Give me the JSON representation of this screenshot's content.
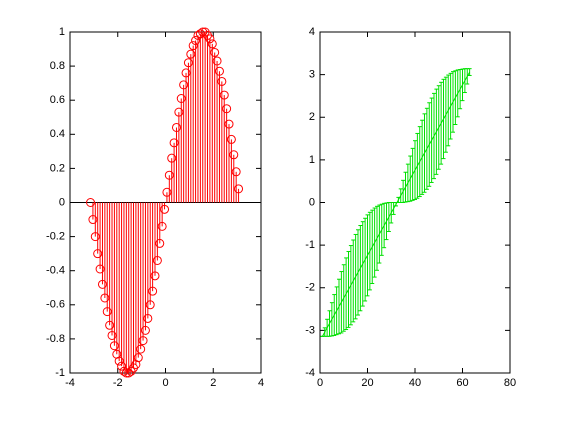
{
  "chart_data": [
    {
      "type": "stem",
      "color": "#ff0000",
      "x": [
        -3.14,
        -3.04,
        -2.94,
        -2.84,
        -2.74,
        -2.64,
        -2.54,
        -2.44,
        -2.34,
        -2.24,
        -2.14,
        -2.04,
        -1.94,
        -1.84,
        -1.74,
        -1.64,
        -1.54,
        -1.44,
        -1.34,
        -1.24,
        -1.14,
        -1.04,
        -0.94,
        -0.84,
        -0.74,
        -0.64,
        -0.54,
        -0.44,
        -0.34,
        -0.24,
        -0.14,
        -0.04,
        0.06,
        0.16,
        0.26,
        0.36,
        0.46,
        0.56,
        0.66,
        0.76,
        0.86,
        0.96,
        1.06,
        1.16,
        1.26,
        1.36,
        1.46,
        1.56,
        1.66,
        1.76,
        1.86,
        1.96,
        2.06,
        2.16,
        2.26,
        2.36,
        2.46,
        2.56,
        2.66,
        2.76,
        2.86,
        2.96,
        3.06
      ],
      "values": [
        0,
        -0.1,
        -0.2,
        -0.3,
        -0.39,
        -0.48,
        -0.56,
        -0.64,
        -0.72,
        -0.78,
        -0.84,
        -0.89,
        -0.93,
        -0.96,
        -0.99,
        -1,
        -1,
        -0.99,
        -0.97,
        -0.95,
        -0.91,
        -0.86,
        -0.81,
        -0.75,
        -0.68,
        -0.6,
        -0.52,
        -0.43,
        -0.34,
        -0.24,
        -0.14,
        -0.04,
        0.06,
        0.16,
        0.26,
        0.35,
        0.44,
        0.53,
        0.61,
        0.69,
        0.76,
        0.82,
        0.87,
        0.92,
        0.95,
        0.98,
        0.99,
        1,
        1,
        0.98,
        0.96,
        0.93,
        0.88,
        0.83,
        0.77,
        0.71,
        0.63,
        0.55,
        0.46,
        0.37,
        0.28,
        0.18,
        0.08
      ],
      "xlim": [
        -4,
        4
      ],
      "xticks": [
        -4,
        -2,
        0,
        2,
        4
      ],
      "ylim": [
        -1,
        1
      ],
      "yticks": [
        -1,
        -0.8,
        -0.6,
        -0.4,
        -0.2,
        0,
        0.2,
        0.4,
        0.6,
        0.8,
        1
      ]
    },
    {
      "type": "errorbar",
      "color": "#00e000",
      "x": [
        1,
        2,
        3,
        4,
        5,
        6,
        7,
        8,
        9,
        10,
        11,
        12,
        13,
        14,
        15,
        16,
        17,
        18,
        19,
        20,
        21,
        22,
        23,
        24,
        25,
        26,
        27,
        28,
        29,
        30,
        31,
        32,
        33,
        34,
        35,
        36,
        37,
        38,
        39,
        40,
        41,
        42,
        43,
        44,
        45,
        46,
        47,
        48,
        49,
        50,
        51,
        52,
        53,
        54,
        55,
        56,
        57,
        58,
        59,
        60,
        61,
        62,
        63
      ],
      "values": [
        -3.14,
        -3.04,
        -2.94,
        -2.84,
        -2.74,
        -2.64,
        -2.54,
        -2.44,
        -2.34,
        -2.24,
        -2.14,
        -2.04,
        -1.94,
        -1.84,
        -1.74,
        -1.64,
        -1.54,
        -1.44,
        -1.34,
        -1.24,
        -1.14,
        -1.04,
        -0.94,
        -0.84,
        -0.74,
        -0.64,
        -0.54,
        -0.44,
        -0.34,
        -0.24,
        -0.14,
        -0.04,
        0.06,
        0.16,
        0.26,
        0.36,
        0.46,
        0.56,
        0.66,
        0.76,
        0.86,
        0.96,
        1.06,
        1.16,
        1.26,
        1.36,
        1.46,
        1.56,
        1.66,
        1.76,
        1.86,
        1.96,
        2.06,
        2.16,
        2.26,
        2.36,
        2.46,
        2.56,
        2.66,
        2.76,
        2.86,
        2.96,
        3.06
      ],
      "errors": [
        0,
        0.1,
        0.2,
        0.3,
        0.39,
        0.48,
        0.56,
        0.64,
        0.72,
        0.78,
        0.84,
        0.89,
        0.93,
        0.96,
        0.99,
        1,
        1,
        0.99,
        0.97,
        0.95,
        0.91,
        0.86,
        0.81,
        0.75,
        0.68,
        0.6,
        0.52,
        0.43,
        0.34,
        0.24,
        0.14,
        0.04,
        0.06,
        0.16,
        0.26,
        0.35,
        0.44,
        0.53,
        0.61,
        0.69,
        0.76,
        0.82,
        0.87,
        0.92,
        0.95,
        0.98,
        0.99,
        1,
        1,
        0.98,
        0.96,
        0.93,
        0.88,
        0.83,
        0.77,
        0.71,
        0.63,
        0.55,
        0.46,
        0.37,
        0.28,
        0.18,
        0.08
      ],
      "xlim": [
        0,
        80
      ],
      "xticks": [
        0,
        20,
        40,
        60,
        80
      ],
      "ylim": [
        -4,
        4
      ],
      "yticks": [
        -4,
        -3,
        -2,
        -1,
        0,
        1,
        2,
        3,
        4
      ]
    }
  ]
}
